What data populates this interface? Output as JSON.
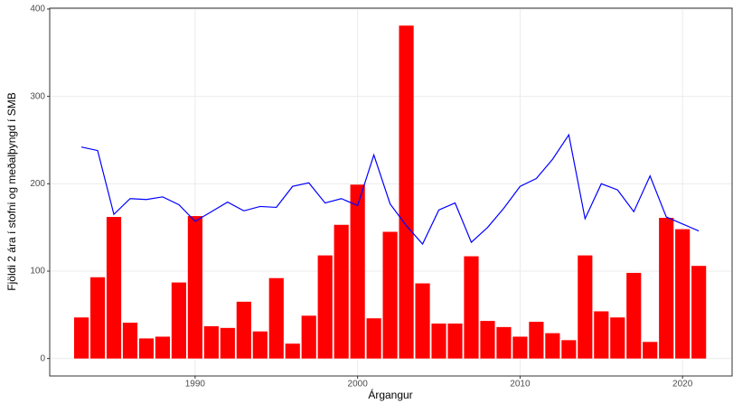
{
  "chart_data": {
    "type": "bar",
    "x_label": "Árgangur",
    "y_label": "Fjöldi 2 ára í stofni og meðalþyngd í SMB",
    "x": [
      1983,
      1984,
      1985,
      1986,
      1987,
      1988,
      1989,
      1990,
      1991,
      1992,
      1993,
      1994,
      1995,
      1996,
      1997,
      1998,
      1999,
      2000,
      2001,
      2002,
      2003,
      2004,
      2005,
      2006,
      2007,
      2008,
      2009,
      2010,
      2011,
      2012,
      2013,
      2014,
      2015,
      2016,
      2017,
      2018,
      2019,
      2020,
      2021
    ],
    "series": [
      {
        "type": "bar",
        "color": "#ff0000",
        "values": [
          47,
          93,
          162,
          41,
          23,
          25,
          87,
          163,
          37,
          35,
          65,
          31,
          92,
          17,
          49,
          118,
          153,
          199,
          46,
          145,
          381,
          86,
          40,
          40,
          117,
          43,
          36,
          25,
          42,
          29,
          21,
          118,
          54,
          47,
          98,
          19,
          161,
          148,
          106
        ]
      },
      {
        "type": "line",
        "color": "#0000ff",
        "values": [
          242,
          238,
          165,
          183,
          182,
          185,
          176,
          157,
          168,
          179,
          169,
          174,
          173,
          197,
          201,
          178,
          183,
          175,
          233,
          177,
          152,
          131,
          170,
          178,
          133,
          150,
          172,
          197,
          206,
          228,
          256,
          160,
          200,
          193,
          168,
          209,
          162,
          154,
          146
        ]
      }
    ],
    "xlim": [
      1981.05,
      2023.05
    ],
    "xticks": [
      1990,
      2000,
      2010,
      2020
    ],
    "ylim": [
      -20,
      401
    ],
    "yticks": [
      0,
      100,
      200,
      300,
      400
    ],
    "grid": true
  }
}
